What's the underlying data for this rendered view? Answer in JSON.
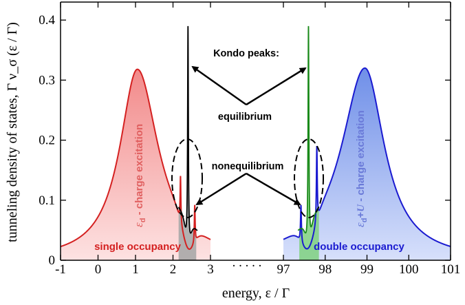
{
  "chart_data": {
    "type": "area",
    "xlabel": "energy,  ε / Γ",
    "ylabel": "tunneling density of states,  Γ ν_σ (ε / Γ)",
    "ylim": [
      0,
      0.43
    ],
    "yticks": [
      "0",
      "0.1",
      "0.2",
      "0.3",
      "0.4"
    ],
    "x_ticks_left": [
      "-1",
      "0",
      "1",
      "2",
      "3"
    ],
    "x_ticks_right": [
      "97",
      "98",
      "99",
      "100",
      "101"
    ],
    "x_break_label": ". . . . .",
    "xlim_left": [
      -1,
      3
    ],
    "xlim_right": [
      97,
      101
    ],
    "colors": {
      "single": "#d42020",
      "single_fill": "#f6a3a3",
      "double": "#1a1ad0",
      "double_fill": "#8ea8ee",
      "equilibrium_left": "#000000",
      "equilibrium_right": "#1a8a1a"
    },
    "annotations": {
      "kondo": "Kondo peaks:",
      "equilibrium": "equilibrium",
      "nonequilibrium": "nonequilibrium",
      "single_occupancy": "single occupancy",
      "double_occupancy": "double occupancy",
      "left_excitation_sym": "ε",
      "left_excitation_sub": "d",
      "left_excitation_rest": " - charge excitation",
      "right_excitation_sym": "ε",
      "right_excitation_sub": "d",
      "right_excitation_plus": "+",
      "right_excitation_U": "U",
      "right_excitation_rest": " - charge excitation"
    },
    "series": [
      {
        "name": "single occupancy",
        "peak_x": 1.05,
        "peak_y": 0.318
      },
      {
        "name": "double occupancy",
        "peak_x": 98.95,
        "peak_y": 0.32
      },
      {
        "name": "equilibrium Kondo peak (left)",
        "peak_x": 2.4,
        "peak_y": 0.43
      },
      {
        "name": "equilibrium Kondo peak (right)",
        "peak_x": 97.6,
        "peak_y": 0.43
      },
      {
        "name": "nonequilibrium Kondo peaks (left)",
        "peaks": [
          [
            2.2,
            0.13
          ],
          [
            2.58,
            0.085
          ]
        ]
      },
      {
        "name": "nonequilibrium Kondo peaks (right)",
        "peaks": [
          [
            97.42,
            0.085
          ],
          [
            97.8,
            0.18
          ]
        ]
      }
    ]
  }
}
